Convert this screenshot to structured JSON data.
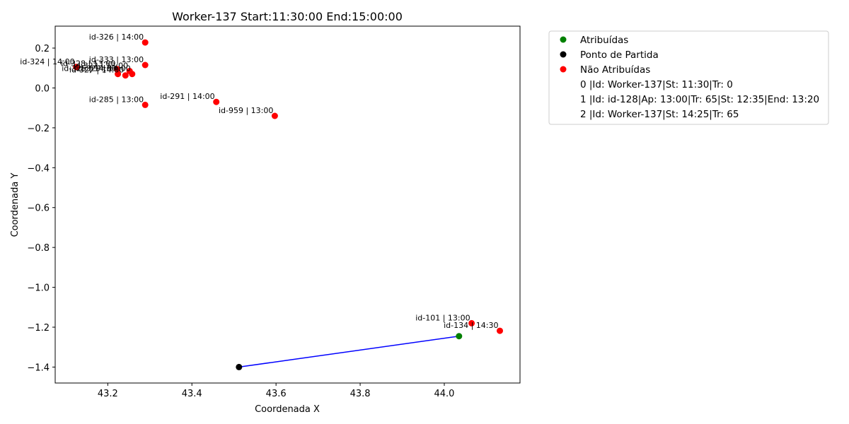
{
  "chart_data": {
    "type": "scatter",
    "title": "Worker-137 Start:11:30:00 End:15:00:00",
    "xlabel": "Coordenada X",
    "ylabel": "Coordenada Y",
    "xlim": [
      43.075,
      44.18
    ],
    "ylim": [
      -1.48,
      0.31
    ],
    "xticks": [
      {
        "value": 43.2,
        "label": "43.2"
      },
      {
        "value": 43.4,
        "label": "43.4"
      },
      {
        "value": 43.6,
        "label": "43.6"
      },
      {
        "value": 43.8,
        "label": "43.8"
      },
      {
        "value": 44.0,
        "label": "44.0"
      }
    ],
    "yticks": [
      {
        "value": 0.2,
        "label": "0.2"
      },
      {
        "value": 0.0,
        "label": "0.0"
      },
      {
        "value": -0.2,
        "label": "−0.2"
      },
      {
        "value": -0.4,
        "label": "−0.4"
      },
      {
        "value": -0.6,
        "label": "−0.6"
      },
      {
        "value": -0.8,
        "label": "−0.8"
      },
      {
        "value": -1.0,
        "label": "−1.0"
      },
      {
        "value": -1.2,
        "label": "−1.2"
      },
      {
        "value": -1.4,
        "label": "−1.4"
      }
    ],
    "grid": false,
    "legend_position": "outside-right",
    "route": {
      "color": "#0000ff",
      "x": [
        43.512,
        44.035
      ],
      "y": [
        -1.4,
        -1.245
      ]
    },
    "series": [
      {
        "name": "Atribuídas",
        "color": "#008000",
        "points": [
          {
            "x": 44.035,
            "y": -1.245
          }
        ]
      },
      {
        "name": "Ponto de Partida",
        "color": "#000000",
        "points": [
          {
            "x": 43.512,
            "y": -1.4
          }
        ]
      },
      {
        "name": "Não Atribuídas",
        "color": "#ff0000",
        "points": [
          {
            "x": 43.289,
            "y": 0.228,
            "label": "id-326 | 14:00"
          },
          {
            "x": 43.289,
            "y": 0.115,
            "label": "id-333 | 13:00"
          },
          {
            "x": 43.125,
            "y": 0.105,
            "label": "id-324 | 14:00"
          },
          {
            "x": 43.222,
            "y": 0.095,
            "label": "id-328 | 13:00"
          },
          {
            "x": 43.252,
            "y": 0.085,
            "label": "id-322 | 13:00"
          },
          {
            "x": 43.224,
            "y": 0.07,
            "label": "id-325 | 14:00"
          },
          {
            "x": 43.242,
            "y": 0.063,
            "label": "id-327 | 14:00"
          },
          {
            "x": 43.258,
            "y": 0.07,
            "label": "id-329 | 14:00"
          },
          {
            "x": 43.289,
            "y": -0.085,
            "label": "id-285 | 13:00"
          },
          {
            "x": 43.458,
            "y": -0.07,
            "label": "id-291 | 14:00"
          },
          {
            "x": 43.597,
            "y": -0.14,
            "label": "id-959 | 13:00"
          },
          {
            "x": 44.065,
            "y": -1.18,
            "label": "id-101 | 13:00"
          },
          {
            "x": 44.132,
            "y": -1.218,
            "label": "id-134 | 14:30"
          }
        ]
      }
    ],
    "legend_notes": [
      "0 |Id: Worker-137|St: 11:30|Tr: 0",
      "1 |Id: id-128|Ap: 13:00|Tr: 65|St: 12:35|End: 13:20",
      "2 |Id: Worker-137|St: 14:25|Tr: 65"
    ]
  }
}
